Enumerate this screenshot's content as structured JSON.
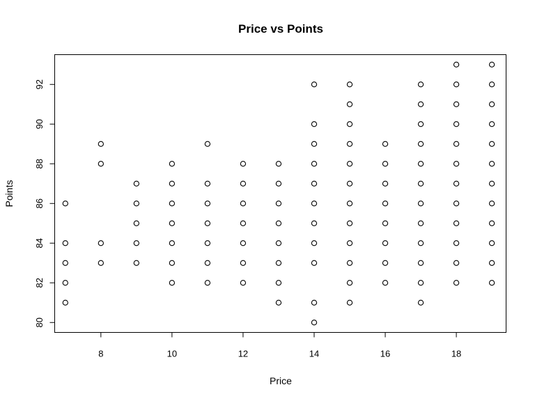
{
  "chart_data": {
    "type": "scatter",
    "title": "Price vs Points",
    "xlabel": "Price",
    "ylabel": "Points",
    "xlim": [
      6.7,
      19.4
    ],
    "ylim": [
      79.5,
      93.5
    ],
    "xticks": [
      8,
      10,
      12,
      14,
      16,
      18
    ],
    "yticks": [
      80,
      82,
      84,
      86,
      88,
      90,
      92
    ],
    "grid": false,
    "marker": "open-circle",
    "points": [
      {
        "x": 7,
        "y": 86
      },
      {
        "x": 7,
        "y": 84
      },
      {
        "x": 7,
        "y": 83
      },
      {
        "x": 7,
        "y": 82
      },
      {
        "x": 7,
        "y": 81
      },
      {
        "x": 8,
        "y": 89
      },
      {
        "x": 8,
        "y": 88
      },
      {
        "x": 8,
        "y": 84
      },
      {
        "x": 8,
        "y": 83
      },
      {
        "x": 9,
        "y": 87
      },
      {
        "x": 9,
        "y": 86
      },
      {
        "x": 9,
        "y": 85
      },
      {
        "x": 9,
        "y": 84
      },
      {
        "x": 9,
        "y": 83
      },
      {
        "x": 10,
        "y": 88
      },
      {
        "x": 10,
        "y": 87
      },
      {
        "x": 10,
        "y": 86
      },
      {
        "x": 10,
        "y": 85
      },
      {
        "x": 10,
        "y": 84
      },
      {
        "x": 10,
        "y": 83
      },
      {
        "x": 10,
        "y": 82
      },
      {
        "x": 11,
        "y": 89
      },
      {
        "x": 11,
        "y": 87
      },
      {
        "x": 11,
        "y": 86
      },
      {
        "x": 11,
        "y": 85
      },
      {
        "x": 11,
        "y": 84
      },
      {
        "x": 11,
        "y": 83
      },
      {
        "x": 11,
        "y": 82
      },
      {
        "x": 12,
        "y": 88
      },
      {
        "x": 12,
        "y": 87
      },
      {
        "x": 12,
        "y": 86
      },
      {
        "x": 12,
        "y": 85
      },
      {
        "x": 12,
        "y": 84
      },
      {
        "x": 12,
        "y": 83
      },
      {
        "x": 12,
        "y": 82
      },
      {
        "x": 13,
        "y": 88
      },
      {
        "x": 13,
        "y": 87
      },
      {
        "x": 13,
        "y": 86
      },
      {
        "x": 13,
        "y": 85
      },
      {
        "x": 13,
        "y": 84
      },
      {
        "x": 13,
        "y": 83
      },
      {
        "x": 13,
        "y": 82
      },
      {
        "x": 13,
        "y": 81
      },
      {
        "x": 14,
        "y": 92
      },
      {
        "x": 14,
        "y": 90
      },
      {
        "x": 14,
        "y": 89
      },
      {
        "x": 14,
        "y": 88
      },
      {
        "x": 14,
        "y": 87
      },
      {
        "x": 14,
        "y": 86
      },
      {
        "x": 14,
        "y": 85
      },
      {
        "x": 14,
        "y": 84
      },
      {
        "x": 14,
        "y": 83
      },
      {
        "x": 14,
        "y": 81
      },
      {
        "x": 14,
        "y": 80
      },
      {
        "x": 15,
        "y": 92
      },
      {
        "x": 15,
        "y": 91
      },
      {
        "x": 15,
        "y": 90
      },
      {
        "x": 15,
        "y": 89
      },
      {
        "x": 15,
        "y": 88
      },
      {
        "x": 15,
        "y": 87
      },
      {
        "x": 15,
        "y": 86
      },
      {
        "x": 15,
        "y": 85
      },
      {
        "x": 15,
        "y": 84
      },
      {
        "x": 15,
        "y": 83
      },
      {
        "x": 15,
        "y": 82
      },
      {
        "x": 15,
        "y": 81
      },
      {
        "x": 16,
        "y": 89
      },
      {
        "x": 16,
        "y": 88
      },
      {
        "x": 16,
        "y": 87
      },
      {
        "x": 16,
        "y": 86
      },
      {
        "x": 16,
        "y": 85
      },
      {
        "x": 16,
        "y": 84
      },
      {
        "x": 16,
        "y": 83
      },
      {
        "x": 16,
        "y": 82
      },
      {
        "x": 17,
        "y": 92
      },
      {
        "x": 17,
        "y": 91
      },
      {
        "x": 17,
        "y": 90
      },
      {
        "x": 17,
        "y": 89
      },
      {
        "x": 17,
        "y": 88
      },
      {
        "x": 17,
        "y": 87
      },
      {
        "x": 17,
        "y": 86
      },
      {
        "x": 17,
        "y": 85
      },
      {
        "x": 17,
        "y": 84
      },
      {
        "x": 17,
        "y": 83
      },
      {
        "x": 17,
        "y": 82
      },
      {
        "x": 17,
        "y": 81
      },
      {
        "x": 18,
        "y": 93
      },
      {
        "x": 18,
        "y": 92
      },
      {
        "x": 18,
        "y": 91
      },
      {
        "x": 18,
        "y": 90
      },
      {
        "x": 18,
        "y": 89
      },
      {
        "x": 18,
        "y": 88
      },
      {
        "x": 18,
        "y": 87
      },
      {
        "x": 18,
        "y": 86
      },
      {
        "x": 18,
        "y": 85
      },
      {
        "x": 18,
        "y": 84
      },
      {
        "x": 18,
        "y": 83
      },
      {
        "x": 18,
        "y": 82
      },
      {
        "x": 19,
        "y": 93
      },
      {
        "x": 19,
        "y": 92
      },
      {
        "x": 19,
        "y": 91
      },
      {
        "x": 19,
        "y": 90
      },
      {
        "x": 19,
        "y": 89
      },
      {
        "x": 19,
        "y": 88
      },
      {
        "x": 19,
        "y": 87
      },
      {
        "x": 19,
        "y": 86
      },
      {
        "x": 19,
        "y": 85
      },
      {
        "x": 19,
        "y": 84
      },
      {
        "x": 19,
        "y": 83
      },
      {
        "x": 19,
        "y": 82
      }
    ]
  }
}
